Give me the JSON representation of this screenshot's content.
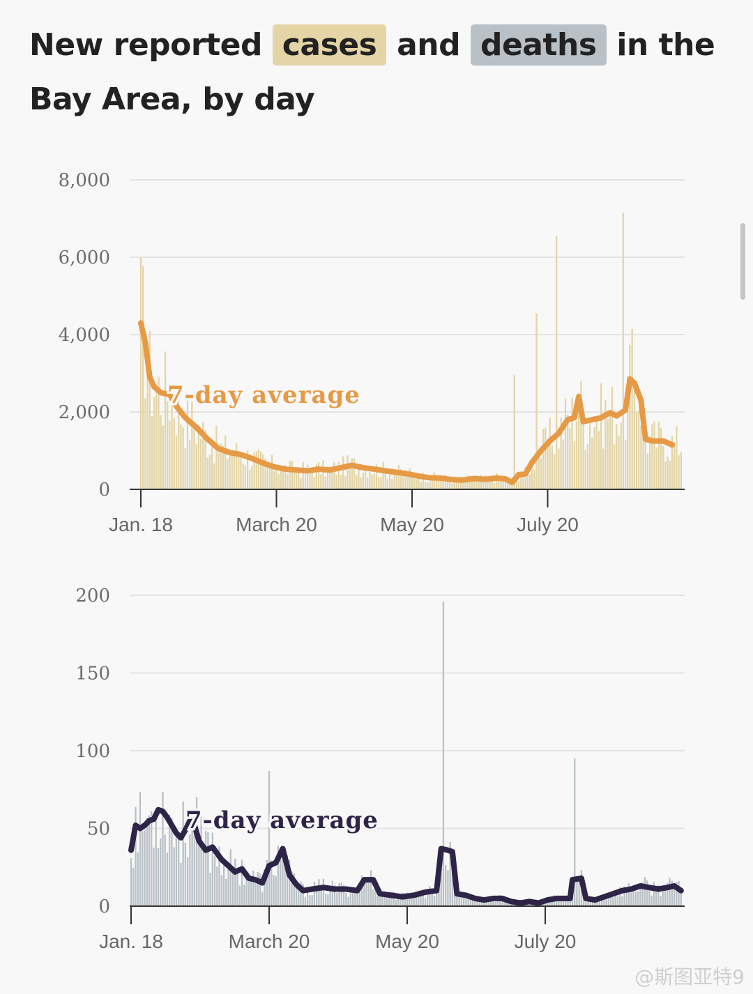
{
  "title": {
    "part1": "New reported ",
    "cases_word": "cases",
    "part2": " and ",
    "deaths_word": "deaths",
    "part3": " in the Bay Area, by day"
  },
  "colors": {
    "cases_bar": "#e3d5a8",
    "cases_line": "#e69a46",
    "deaths_bar": "#b9c1c6",
    "deaths_line": "#2e2448",
    "grid": "#e3e3e3",
    "axis": "#333333"
  },
  "watermark": "@斯图亚特9",
  "chart_data": [
    {
      "type": "bar",
      "title": "",
      "series_label": "7-day average",
      "y_ticks": [
        "8,000",
        "6,000",
        "4,000",
        "2,000",
        "0"
      ],
      "x_ticks": [
        "Jan. 18",
        "March 20",
        "May 20",
        "July 20"
      ],
      "ylim": [
        0,
        8000
      ],
      "x_start": "Jan. 18",
      "x_tick_days": [
        0,
        61,
        122,
        183
      ],
      "total_days": 244,
      "spikes": [
        {
          "day": 168,
          "value": 2950
        },
        {
          "day": 178,
          "value": 4550
        },
        {
          "day": 187,
          "value": 6550
        },
        {
          "day": 217,
          "value": 7150
        }
      ],
      "seven_day_average": [
        [
          0,
          4300
        ],
        [
          2,
          3800
        ],
        [
          4,
          2900
        ],
        [
          6,
          2650
        ],
        [
          9,
          2500
        ],
        [
          13,
          2450
        ],
        [
          16,
          2150
        ],
        [
          20,
          1850
        ],
        [
          25,
          1600
        ],
        [
          30,
          1300
        ],
        [
          35,
          1050
        ],
        [
          40,
          950
        ],
        [
          45,
          900
        ],
        [
          50,
          800
        ],
        [
          55,
          680
        ],
        [
          60,
          580
        ],
        [
          65,
          520
        ],
        [
          70,
          500
        ],
        [
          75,
          480
        ],
        [
          80,
          520
        ],
        [
          85,
          500
        ],
        [
          90,
          560
        ],
        [
          95,
          620
        ],
        [
          100,
          560
        ],
        [
          105,
          520
        ],
        [
          110,
          480
        ],
        [
          115,
          440
        ],
        [
          120,
          400
        ],
        [
          125,
          340
        ],
        [
          130,
          300
        ],
        [
          135,
          290
        ],
        [
          140,
          250
        ],
        [
          145,
          240
        ],
        [
          150,
          280
        ],
        [
          155,
          260
        ],
        [
          160,
          290
        ],
        [
          164,
          270
        ],
        [
          167,
          180
        ],
        [
          170,
          380
        ],
        [
          173,
          400
        ],
        [
          176,
          700
        ],
        [
          180,
          1000
        ],
        [
          184,
          1250
        ],
        [
          188,
          1450
        ],
        [
          192,
          1800
        ],
        [
          195,
          1850
        ],
        [
          197,
          2400
        ],
        [
          199,
          1750
        ],
        [
          203,
          1800
        ],
        [
          207,
          1850
        ],
        [
          211,
          1980
        ],
        [
          214,
          1900
        ],
        [
          218,
          2050
        ],
        [
          220,
          2850
        ],
        [
          222,
          2750
        ],
        [
          225,
          2300
        ],
        [
          227,
          1300
        ],
        [
          230,
          1250
        ],
        [
          235,
          1250
        ],
        [
          239,
          1150
        ]
      ]
    },
    {
      "type": "bar",
      "title": "",
      "series_label": "7-day average",
      "y_ticks": [
        "200",
        "150",
        "100",
        "50",
        "0"
      ],
      "x_ticks": [
        "Jan. 18",
        "March 20",
        "May 20",
        "July 20"
      ],
      "ylim": [
        0,
        200
      ],
      "x_start": "Jan. 18",
      "x_tick_days": [
        0,
        61,
        122,
        183
      ],
      "total_days": 244,
      "spikes": [
        {
          "day": 61,
          "value": 87
        },
        {
          "day": 138,
          "value": 196
        },
        {
          "day": 196,
          "value": 95
        }
      ],
      "seven_day_average": [
        [
          0,
          36
        ],
        [
          2,
          52
        ],
        [
          4,
          50
        ],
        [
          6,
          52
        ],
        [
          8,
          55
        ],
        [
          10,
          56
        ],
        [
          12,
          62
        ],
        [
          14,
          61
        ],
        [
          16,
          57
        ],
        [
          18,
          52
        ],
        [
          20,
          47
        ],
        [
          22,
          44
        ],
        [
          24,
          49
        ],
        [
          26,
          55
        ],
        [
          28,
          52
        ],
        [
          30,
          42
        ],
        [
          33,
          36
        ],
        [
          36,
          38
        ],
        [
          40,
          30
        ],
        [
          43,
          26
        ],
        [
          46,
          22
        ],
        [
          49,
          24
        ],
        [
          52,
          18
        ],
        [
          55,
          17
        ],
        [
          58,
          15
        ],
        [
          61,
          26
        ],
        [
          64,
          28
        ],
        [
          67,
          37
        ],
        [
          70,
          20
        ],
        [
          73,
          14
        ],
        [
          76,
          10
        ],
        [
          80,
          11
        ],
        [
          85,
          12
        ],
        [
          90,
          11
        ],
        [
          95,
          11
        ],
        [
          100,
          10
        ],
        [
          103,
          17
        ],
        [
          107,
          17
        ],
        [
          110,
          8
        ],
        [
          115,
          7
        ],
        [
          120,
          6
        ],
        [
          125,
          7
        ],
        [
          130,
          9
        ],
        [
          135,
          10
        ],
        [
          137,
          37
        ],
        [
          140,
          36
        ],
        [
          142,
          35
        ],
        [
          144,
          8
        ],
        [
          148,
          7
        ],
        [
          152,
          5
        ],
        [
          156,
          4
        ],
        [
          160,
          5
        ],
        [
          164,
          5
        ],
        [
          168,
          3
        ],
        [
          172,
          2
        ],
        [
          176,
          3
        ],
        [
          180,
          2
        ],
        [
          184,
          4
        ],
        [
          188,
          5
        ],
        [
          192,
          5
        ],
        [
          194,
          5
        ],
        [
          195,
          17
        ],
        [
          199,
          18
        ],
        [
          201,
          5
        ],
        [
          205,
          4
        ],
        [
          209,
          6
        ],
        [
          213,
          8
        ],
        [
          217,
          10
        ],
        [
          221,
          11
        ],
        [
          225,
          13
        ],
        [
          229,
          12
        ],
        [
          233,
          11
        ],
        [
          237,
          12
        ],
        [
          240,
          13
        ],
        [
          243,
          10
        ]
      ]
    }
  ]
}
